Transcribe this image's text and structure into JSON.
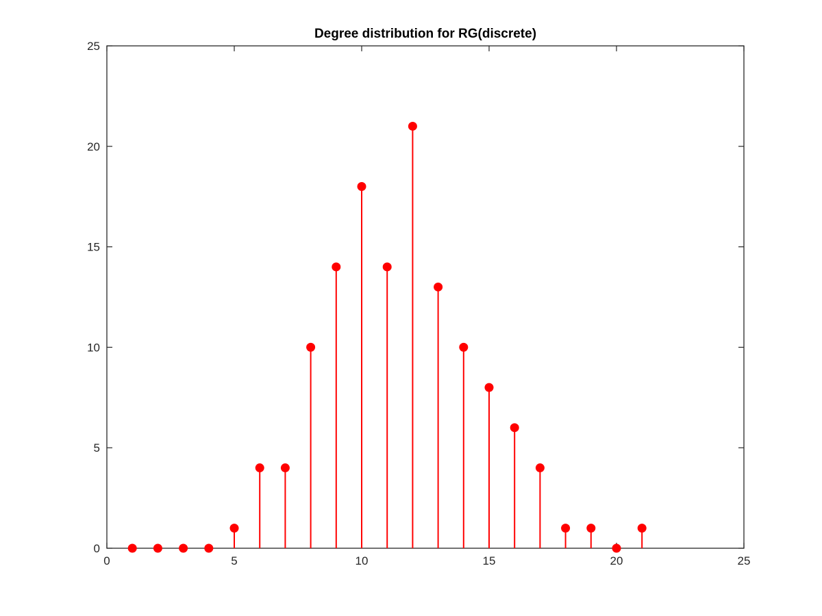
{
  "chart_data": {
    "type": "stem",
    "title": "Degree distribution for RG(discrete)",
    "xlabel": "",
    "ylabel": "",
    "xlim": [
      0,
      25
    ],
    "ylim": [
      0,
      25
    ],
    "x_ticks": [
      0,
      5,
      10,
      15,
      20,
      25
    ],
    "y_ticks": [
      0,
      5,
      10,
      15,
      20,
      25
    ],
    "grid": false,
    "legend": "none",
    "series": [
      {
        "color": "#ff0000",
        "marker": "filled-circle",
        "x": [
          1,
          2,
          3,
          4,
          5,
          6,
          7,
          8,
          9,
          10,
          11,
          12,
          13,
          14,
          15,
          16,
          17,
          18,
          19,
          20,
          21
        ],
        "y": [
          0,
          0,
          0,
          0,
          1,
          4,
          4,
          10,
          14,
          18,
          14,
          21,
          13,
          10,
          8,
          6,
          4,
          1,
          1,
          0,
          1
        ]
      }
    ]
  }
}
